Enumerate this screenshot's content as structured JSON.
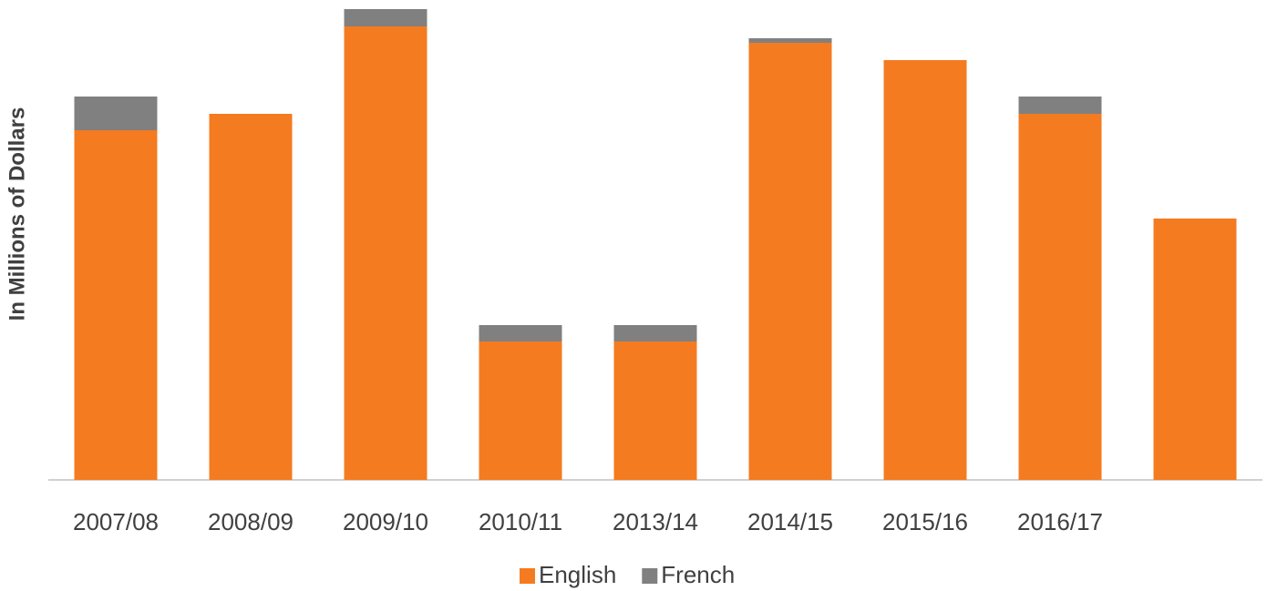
{
  "chart_data": {
    "type": "stacked_bar",
    "y_axis_label": "In Millions of Dollars",
    "categories": [
      "2007/08",
      "2008/09",
      "2009/10",
      "2010/11",
      "2013/14",
      "2014/15",
      "2015/16",
      "2016/17",
      null
    ],
    "series": [
      {
        "name": "English",
        "color": "#f47b20",
        "values": [
          384,
          402,
          498,
          152,
          152,
          480,
          461,
          402,
          287
        ]
      },
      {
        "name": "French",
        "color": "#808080",
        "values": [
          37,
          0,
          19,
          18,
          18,
          5,
          0,
          19,
          0
        ]
      }
    ],
    "ylim": [
      0,
      517
    ],
    "legend": "bottom"
  }
}
